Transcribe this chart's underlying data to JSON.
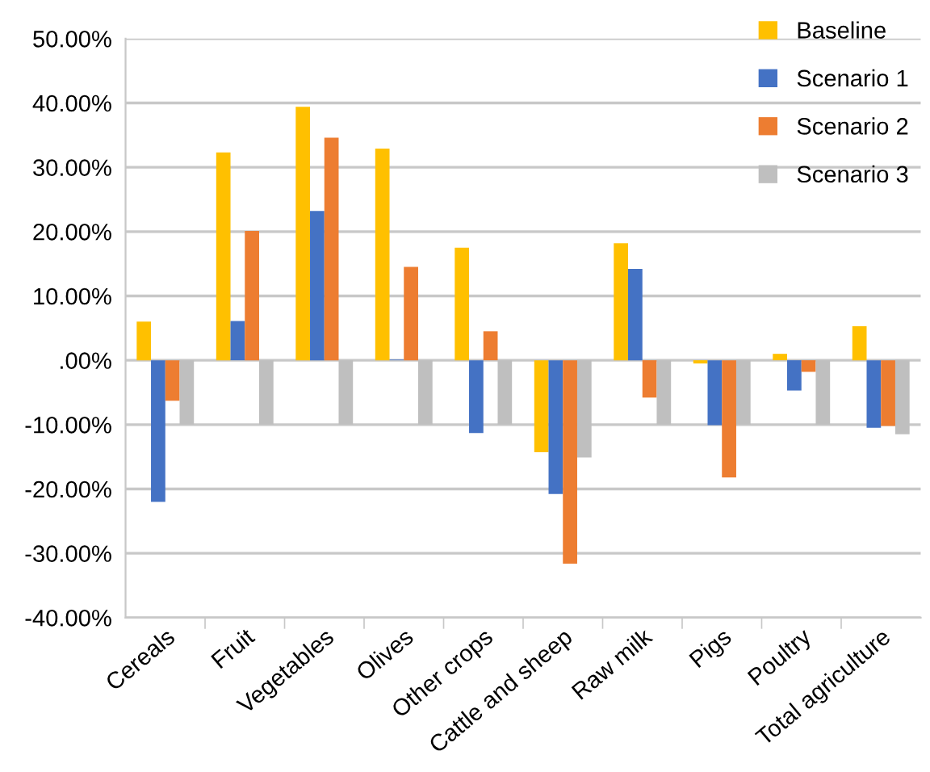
{
  "chart_data": {
    "type": "bar",
    "categories": [
      "Cereals",
      "Fruit",
      "Vegetables",
      "Olives",
      "Other crops",
      "Cattle and sheep",
      "Raw milk",
      "Pigs",
      "Poultry",
      "Total agriculture"
    ],
    "series": [
      {
        "name": "Baseline",
        "color": "#ffc000",
        "values": [
          6.0,
          32.3,
          39.4,
          32.9,
          17.5,
          -14.3,
          18.2,
          -0.5,
          1.0,
          5.3
        ]
      },
      {
        "name": "Scenario 1",
        "color": "#4472c4",
        "values": [
          -22.0,
          6.1,
          23.2,
          0.1,
          -11.3,
          -20.8,
          14.2,
          -10.1,
          -4.7,
          -10.5
        ]
      },
      {
        "name": "Scenario 2",
        "color": "#ed7d31",
        "values": [
          -6.3,
          20.1,
          34.6,
          14.5,
          4.5,
          -31.6,
          -5.8,
          -18.2,
          -1.8,
          -10.2
        ]
      },
      {
        "name": "Scenario 3",
        "color": "#bfbfbf",
        "values": [
          -10.0,
          -10.0,
          -10.0,
          -10.0,
          -10.0,
          -15.1,
          -10.0,
          -10.0,
          -10.0,
          -11.5
        ]
      }
    ],
    "ylim": [
      -40,
      50
    ],
    "yticks": [
      {
        "value": -40,
        "label": "-40.00%"
      },
      {
        "value": -30,
        "label": "-30.00%"
      },
      {
        "value": -20,
        "label": "-20.00%"
      },
      {
        "value": -10,
        "label": "-10.00%"
      },
      {
        "value": 0,
        "label": ".00%"
      },
      {
        "value": 10,
        "label": "10.00%"
      },
      {
        "value": 20,
        "label": "20.00%"
      },
      {
        "value": 30,
        "label": "30.00%"
      },
      {
        "value": 40,
        "label": "40.00%"
      },
      {
        "value": 50,
        "label": "50.00%"
      }
    ],
    "grid": "y",
    "legend": "top right"
  }
}
